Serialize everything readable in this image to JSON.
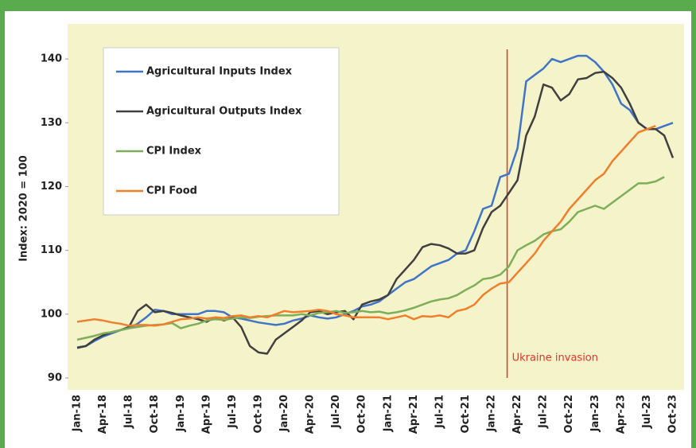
{
  "chart_data": {
    "type": "line",
    "y_label": "Index: 2020 = 100",
    "annotation": "Ukraine invasion",
    "annotation_color": "#e8322a",
    "categories": [
      "Jan-18",
      null,
      null,
      "Apr-18",
      null,
      null,
      "Jul-18",
      null,
      null,
      "Oct-18",
      null,
      null,
      "Jan-19",
      null,
      null,
      "Apr-19",
      null,
      null,
      "Jul-19",
      null,
      null,
      "Oct-19",
      null,
      null,
      "Jan-20",
      null,
      null,
      "Apr-20",
      null,
      null,
      "Jul-20",
      null,
      null,
      "Oct-20",
      null,
      null,
      "Jan-21",
      null,
      null,
      "Apr-21",
      null,
      null,
      "Jul-21",
      null,
      null,
      "Oct-21",
      null,
      null,
      "Jan-22",
      null,
      null,
      "Apr-22",
      null,
      null,
      "Jul-22",
      null,
      null,
      "Oct-22",
      null,
      null,
      "Jan-23",
      null,
      null,
      "Apr-23",
      null,
      null,
      "Jul-23",
      null,
      null,
      "Oct-23"
    ],
    "ylim": [
      90,
      145
    ],
    "yticks": [
      90,
      100,
      110,
      120,
      130,
      140
    ],
    "series": [
      {
        "name": "Agricultural Inputs Index",
        "color": "#3f74c9",
        "values": [
          94.8,
          95,
          95.8,
          96.5,
          97,
          97.5,
          97.8,
          98.5,
          99.5,
          100.7,
          100.5,
          100,
          100,
          100,
          100,
          100.5,
          100.5,
          100.3,
          99.5,
          99.3,
          99,
          98.7,
          98.5,
          98.3,
          98.5,
          99,
          99.3,
          99.8,
          99.5,
          99.3,
          99.5,
          100,
          100.5,
          101.2,
          101.5,
          102,
          103,
          104,
          105,
          105.5,
          106.5,
          107.5,
          108,
          108.5,
          109.5,
          110,
          113,
          116.5,
          117,
          121.5,
          122,
          126,
          136.5,
          137.5,
          138.5,
          140,
          139.5,
          140,
          140.5,
          140.5,
          139.5,
          138,
          136,
          133,
          132,
          130,
          129,
          129,
          129.5,
          130
        ]
      },
      {
        "name": "Agricultural Outputs Index",
        "color": "#404040",
        "values": [
          94.7,
          95,
          96,
          96.7,
          97.2,
          97.5,
          98,
          100.5,
          101.5,
          100.3,
          100.5,
          100.2,
          99.8,
          99.5,
          99.2,
          98.8,
          99.5,
          99,
          99.5,
          98,
          95,
          94,
          93.8,
          96,
          97,
          98,
          99,
          100.3,
          100.5,
          100,
          100.3,
          100.5,
          99.2,
          101.5,
          102,
          102.3,
          103,
          105.5,
          107,
          108.5,
          110.5,
          111,
          110.8,
          110.3,
          109.5,
          109.5,
          110,
          113.5,
          116,
          117,
          119,
          121,
          128,
          131,
          136,
          135.5,
          133.5,
          134.5,
          136.8,
          137,
          137.8,
          138,
          137,
          135.5,
          133,
          130,
          129,
          129,
          128,
          124.5
        ]
      },
      {
        "name": "CPI Index",
        "color": "#7fae5a",
        "values": [
          96,
          96.3,
          96.6,
          97,
          97.2,
          97.5,
          97.8,
          98,
          98.2,
          98.3,
          98.4,
          98.6,
          97.8,
          98.2,
          98.5,
          99,
          99.2,
          99.1,
          99.3,
          99.5,
          99.4,
          99.6,
          99.7,
          99.8,
          99.8,
          99.8,
          100,
          99.8,
          100.2,
          100.3,
          100.5,
          100.2,
          100.3,
          100.5,
          100.3,
          100.4,
          100.1,
          100.3,
          100.6,
          101,
          101.5,
          102,
          102.3,
          102.5,
          103,
          103.8,
          104.5,
          105.5,
          105.7,
          106.2,
          107.5,
          110,
          110.8,
          111.5,
          112.5,
          113,
          113.3,
          114.5,
          116,
          116.5,
          117,
          116.5,
          117.5,
          118.5,
          119.5,
          120.5,
          120.5,
          120.8,
          121.5,
          null
        ]
      },
      {
        "name": "CPI Food",
        "color": "#f07f2d",
        "values": [
          98.8,
          99,
          99.2,
          99,
          98.7,
          98.5,
          98.2,
          98.3,
          98.3,
          98.2,
          98.4,
          98.8,
          99.2,
          99.3,
          99.5,
          99.3,
          99.5,
          99.4,
          99.7,
          99.8,
          99.5,
          99.7,
          99.5,
          100,
          100.5,
          100.3,
          100.4,
          100.5,
          100.7,
          100.5,
          100,
          99.8,
          99.5,
          99.5,
          99.5,
          99.5,
          99.2,
          99.5,
          99.8,
          99.2,
          99.7,
          99.6,
          99.8,
          99.5,
          100.5,
          100.8,
          101.5,
          103,
          104,
          104.8,
          105,
          106.5,
          108,
          109.5,
          111.5,
          113,
          114.5,
          116.5,
          118,
          119.5,
          121,
          122,
          124,
          125.5,
          127,
          128.5,
          129,
          129.5,
          null,
          null
        ]
      }
    ]
  }
}
